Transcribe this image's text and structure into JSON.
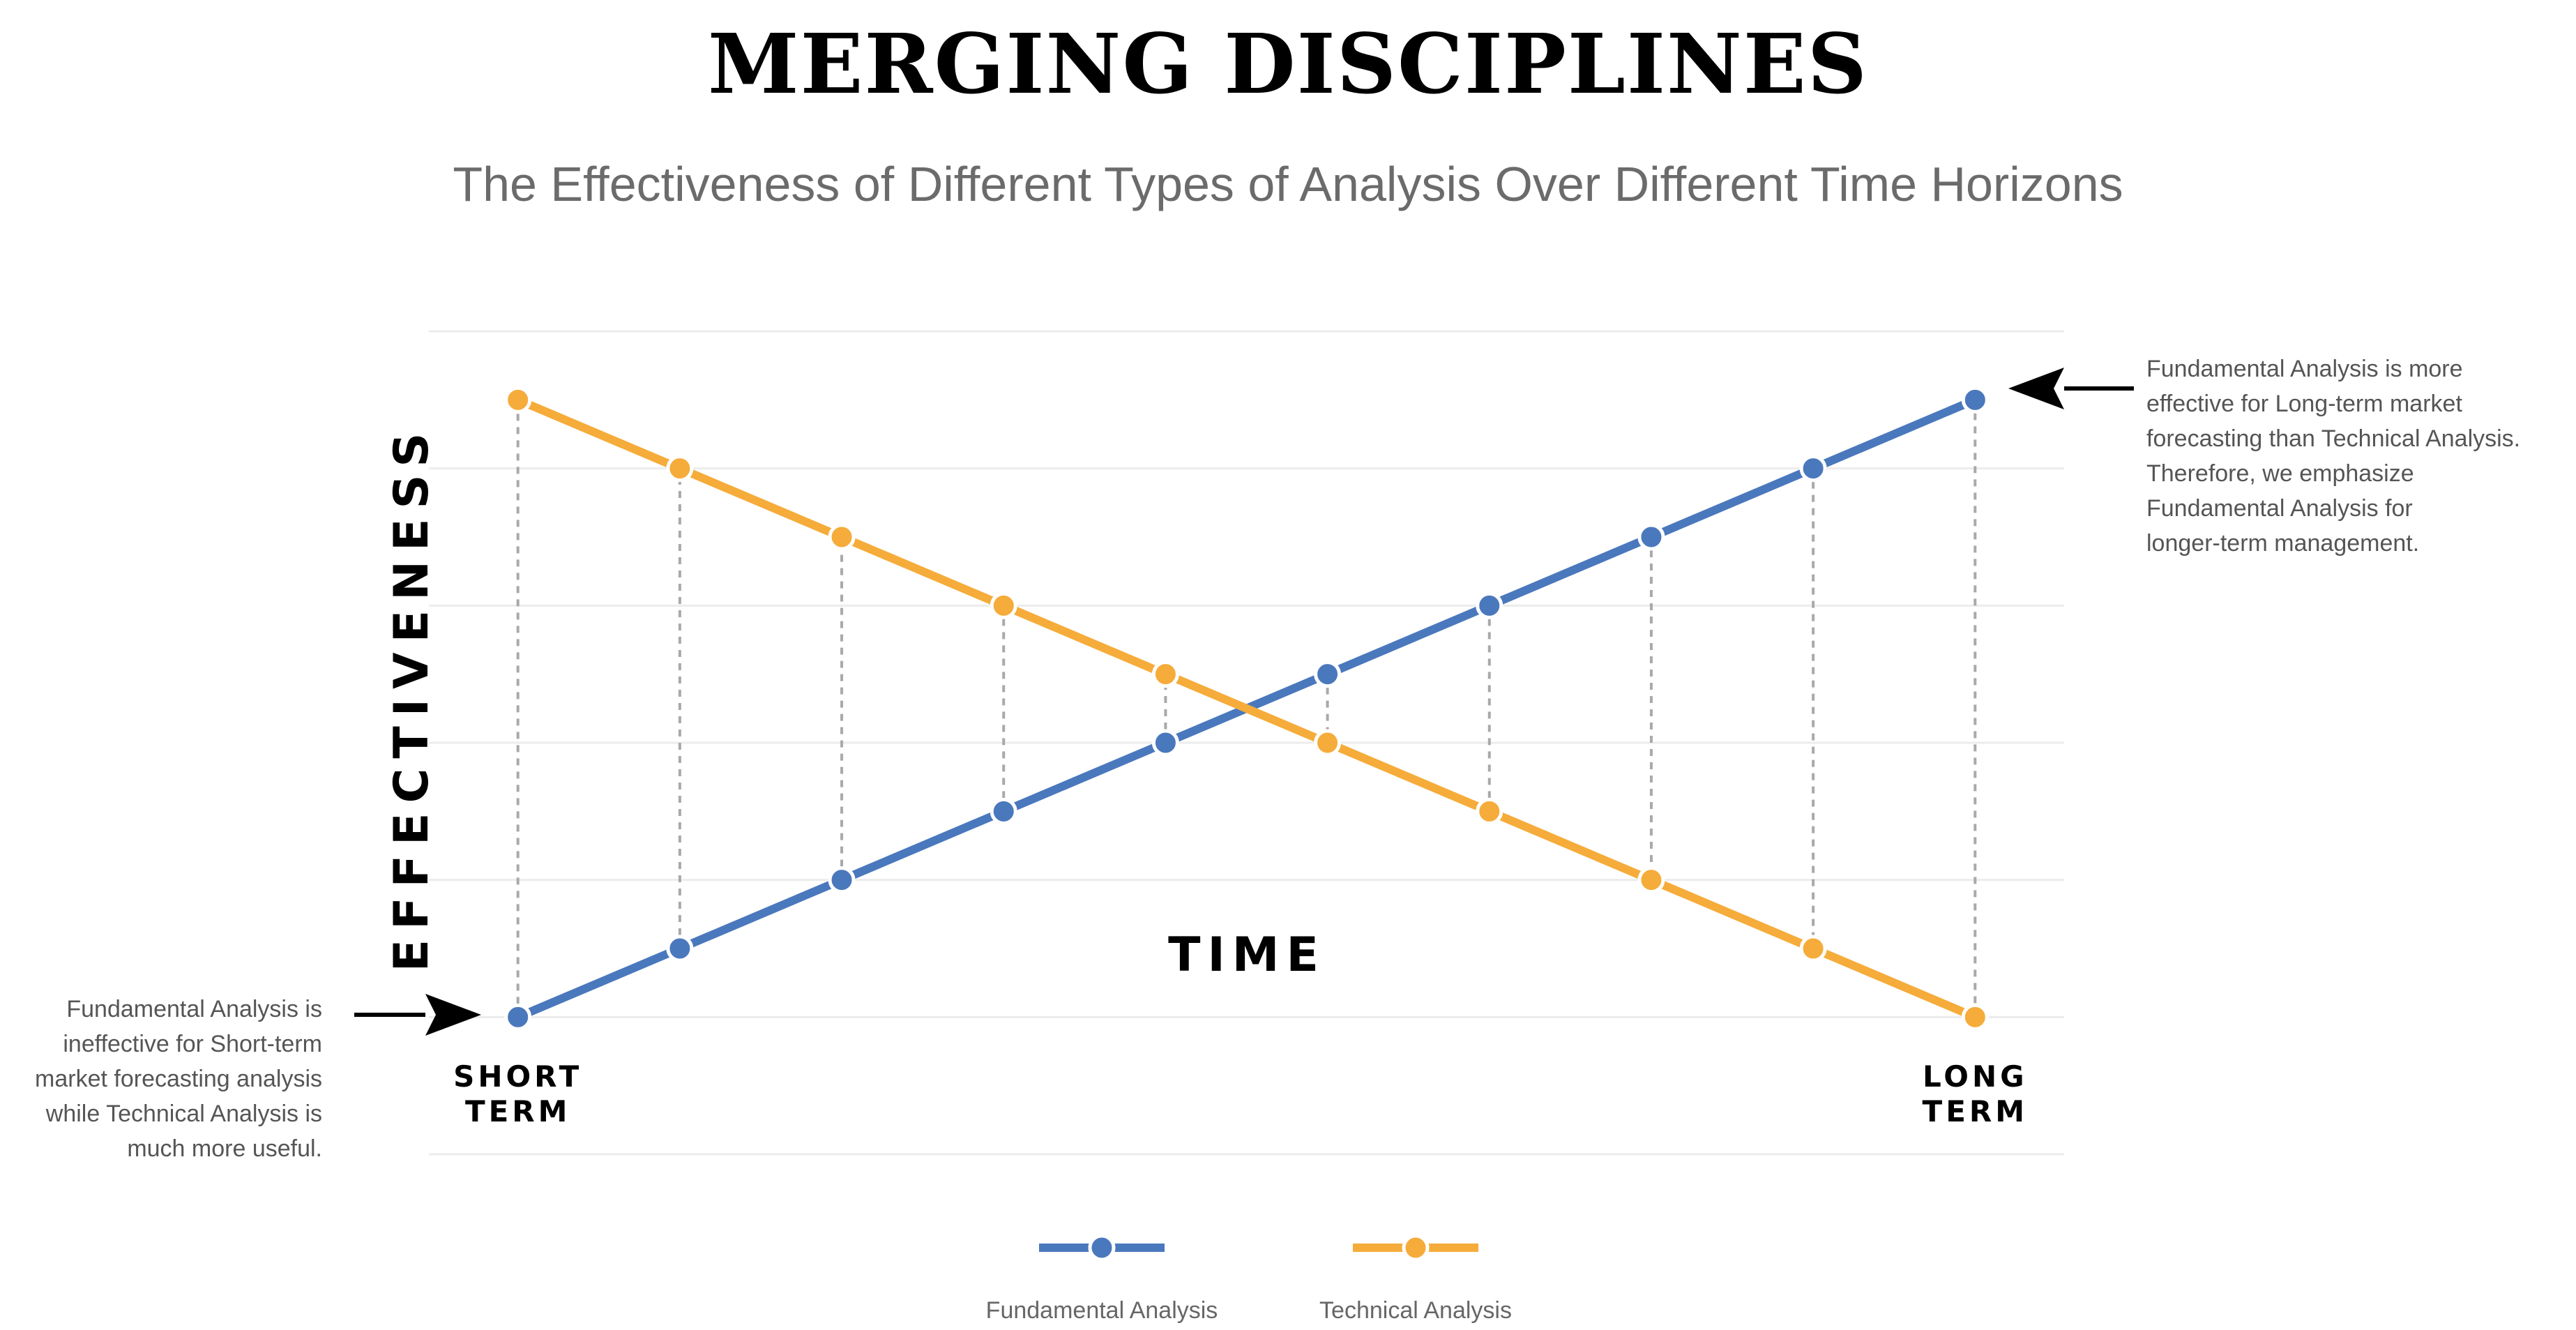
{
  "header": {
    "title": "MERGING DISCIPLINES",
    "subtitle": "The Effectiveness of Different Types of Analysis Over Different Time Horizons"
  },
  "annotations": {
    "right": [
      "Fundamental Analysis is more",
      "effective for Long-term market",
      "forecasting than Technical Analysis.",
      "Therefore, we emphasize",
      "Fundamental Analysis for",
      "longer-term management."
    ],
    "left": [
      "Fundamental Analysis is",
      "ineffective for Short-term",
      "market forecasting analysis",
      "while Technical Analysis is",
      "much more useful."
    ]
  },
  "chart_data": {
    "type": "line",
    "xlabel": "TIME",
    "ylabel": "EFFECTIVENESS",
    "x": [
      1,
      2,
      3,
      4,
      5,
      6,
      7,
      8,
      9,
      10
    ],
    "x_tick_labels": [
      {
        "x": 1,
        "lines": [
          "SHORT",
          "TERM"
        ]
      },
      {
        "x": 10,
        "lines": [
          "LONG",
          "TERM"
        ]
      }
    ],
    "series": [
      {
        "name": "Fundamental Analysis",
        "color": "#4a78bd",
        "values": [
          0,
          1,
          2,
          3,
          4,
          5,
          6,
          7,
          8,
          9
        ]
      },
      {
        "name": "Technical Analysis",
        "color": "#f5ac3a",
        "values": [
          9,
          8,
          7,
          6,
          5,
          4,
          3,
          2,
          1,
          0
        ]
      }
    ],
    "xlim": [
      0.45,
      10.55
    ],
    "ylim": [
      -2,
      10
    ],
    "grid": true,
    "dropline_color": "#a9a9a9",
    "legend_position": "bottom"
  }
}
